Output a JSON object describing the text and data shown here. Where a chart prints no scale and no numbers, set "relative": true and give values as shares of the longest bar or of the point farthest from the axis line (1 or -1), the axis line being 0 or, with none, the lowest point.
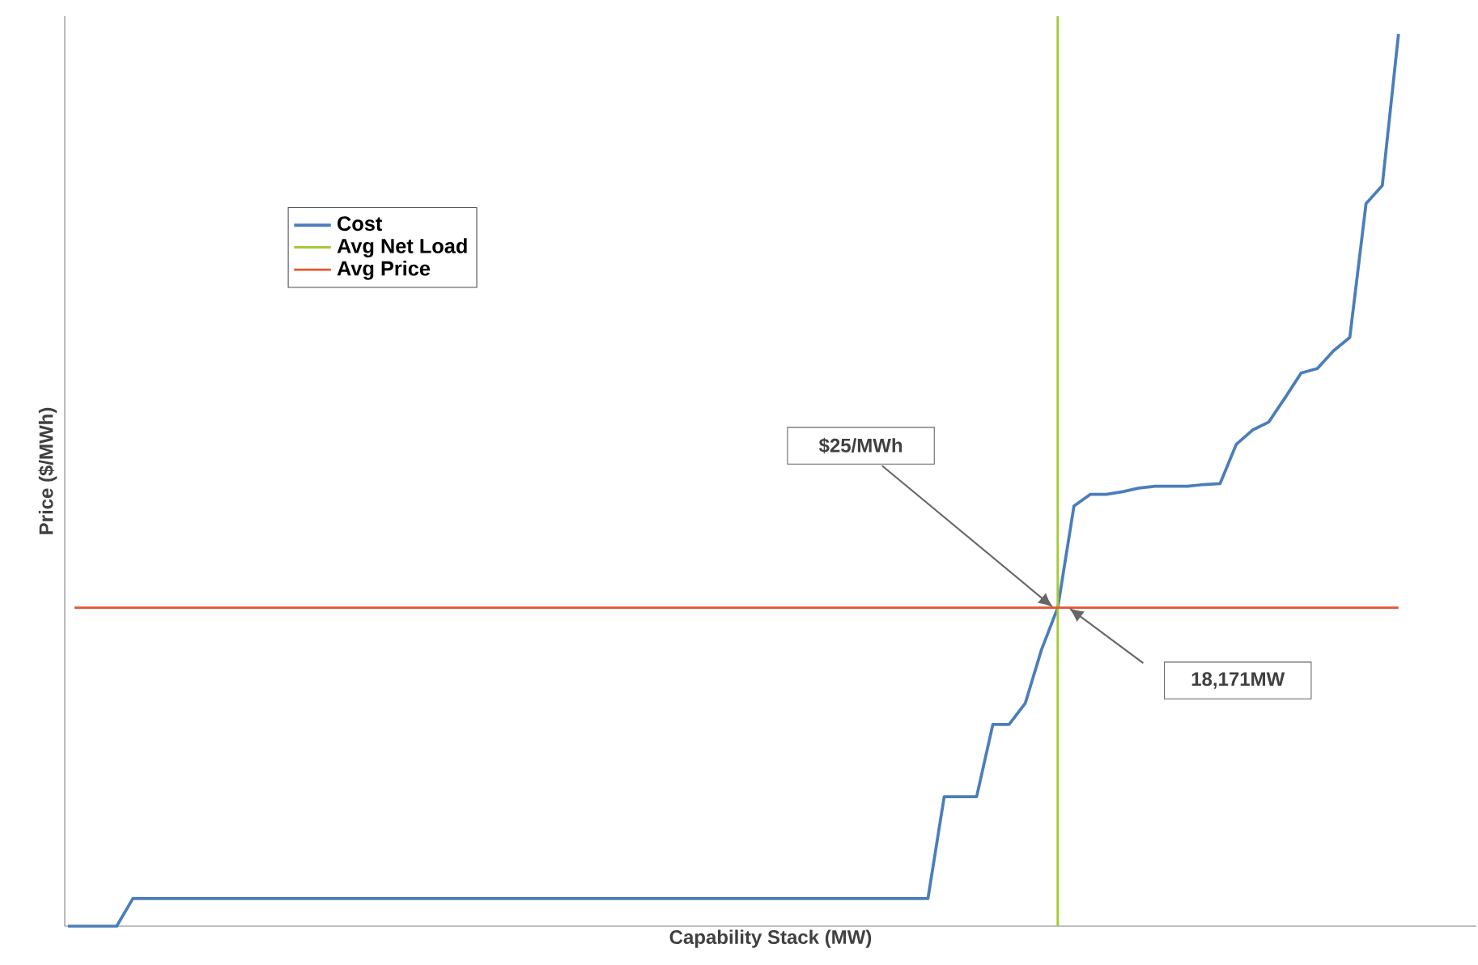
{
  "chart_data": {
    "type": "line",
    "relative": true,
    "xlabel": "Capability Stack (MW)",
    "ylabel": "Price ($/MWh)",
    "legend": "top left",
    "marker": "none",
    "line_style": "solid",
    "categories": [
      null,
      null,
      null,
      null,
      null,
      null,
      null,
      null,
      null,
      null,
      null,
      null,
      null,
      null,
      null,
      null,
      null,
      null,
      null,
      null,
      null,
      null,
      null,
      null,
      null,
      null,
      null,
      null,
      null,
      null,
      null,
      null,
      null,
      null,
      null,
      null,
      null,
      null,
      null,
      null,
      null,
      null,
      null,
      null,
      null,
      null,
      null,
      null,
      null,
      null,
      null,
      null,
      null,
      null,
      null,
      null,
      null,
      null,
      null,
      null,
      null,
      null,
      null,
      null,
      null,
      null,
      null,
      null,
      null,
      null,
      null,
      null,
      null,
      null,
      null,
      null,
      null,
      null,
      null,
      null,
      null,
      null,
      null
    ],
    "series": [
      {
        "name": "Cost",
        "color": "#4a7ebb",
        "values": [
          0,
          0,
          0,
          0,
          0.031,
          0.031,
          0.031,
          0.031,
          0.031,
          0.031,
          0.031,
          0.031,
          0.031,
          0.031,
          0.031,
          0.031,
          0.031,
          0.031,
          0.031,
          0.031,
          0.031,
          0.031,
          0.031,
          0.031,
          0.031,
          0.031,
          0.031,
          0.031,
          0.031,
          0.031,
          0.031,
          0.031,
          0.031,
          0.031,
          0.031,
          0.031,
          0.031,
          0.031,
          0.031,
          0.031,
          0.031,
          0.031,
          0.031,
          0.031,
          0.031,
          0.031,
          0.031,
          0.031,
          0.031,
          0.031,
          0.031,
          0.031,
          0.031,
          0.031,
          0.145,
          0.145,
          0.145,
          0.226,
          0.226,
          0.25,
          0.31,
          0.357,
          0.471,
          0.484,
          0.484,
          0.487,
          0.491,
          0.493,
          0.493,
          0.493,
          0.495,
          0.496,
          0.54,
          0.556,
          0.565,
          0.592,
          0.62,
          0.625,
          0.645,
          0.66,
          0.81,
          0.83,
          1.0
        ]
      }
    ],
    "ref_lines": [
      {
        "axis": "x",
        "label": "Avg Net Load",
        "color": "#a8c83a"
      },
      {
        "axis": "y",
        "value": 0.357,
        "label": "Avg Price",
        "color": "#e4572e"
      }
    ],
    "annotations": [
      "$25/MWh",
      "18,171MW"
    ]
  }
}
